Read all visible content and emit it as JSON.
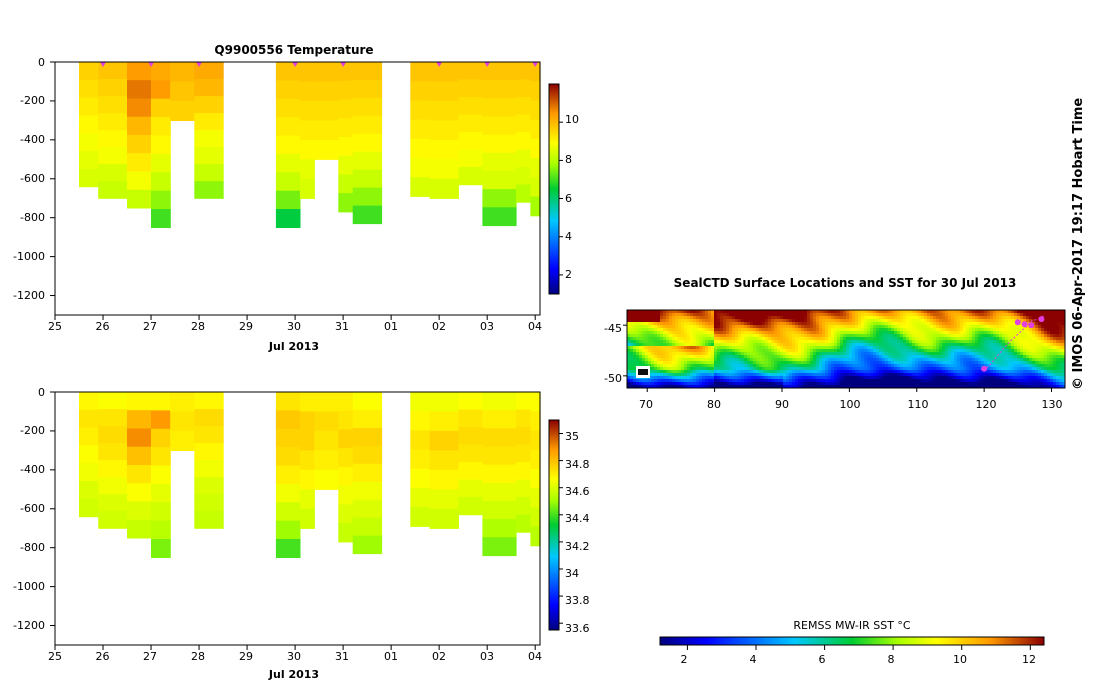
{
  "credit": "© IMOS 06-Apr-2017 19:17 Hobart Time",
  "colors": {
    "axis": "#000000",
    "marker": "#e040e0",
    "background": "#ffffff"
  },
  "section_plots": [
    {
      "id": "temperature",
      "title": "Q9900556  Temperature",
      "x_ticks": [
        "25",
        "26",
        "27",
        "28",
        "29",
        "30",
        "31",
        "01",
        "02",
        "03",
        "04"
      ],
      "x_month_label": "Jul 2013",
      "y_ticks": [
        "0",
        "-200",
        "-400",
        "-600",
        "-800",
        "-1000",
        "-1200"
      ],
      "colorbar_ticks": [
        "2",
        "4",
        "6",
        "8",
        "10"
      ]
    },
    {
      "id": "salinity",
      "title": "",
      "x_ticks": [
        "25",
        "26",
        "27",
        "28",
        "29",
        "30",
        "31",
        "01",
        "02",
        "03",
        "04"
      ],
      "x_month_label": "Jul 2013",
      "y_ticks": [
        "0",
        "-200",
        "-400",
        "-600",
        "-800",
        "-1000",
        "-1200"
      ],
      "colorbar_ticks": [
        "33.6",
        "33.8",
        "34",
        "34.2",
        "34.4",
        "34.6",
        "34.8",
        "35"
      ]
    }
  ],
  "map": {
    "title": "SealCTD Surface Locations and SST for 30 Jul 2013",
    "x_ticks": [
      "70",
      "80",
      "90",
      "100",
      "110",
      "120",
      "130"
    ],
    "y_ticks": [
      "-45",
      "-50"
    ],
    "colorbar_title": "REMSS MW-IR SST °C",
    "colorbar_ticks": [
      "2",
      "4",
      "6",
      "8",
      "10",
      "12"
    ]
  },
  "chart_data": [
    {
      "type": "heatmap",
      "title": "Q9900556  Temperature",
      "xlabel": "Jul 2013",
      "ylabel": "",
      "x_unit": "day of Jul 2013 (28 = 28 Jul, 32 = 1 Aug)",
      "xlim": [
        25,
        35.1
      ],
      "ylim": [
        -1300,
        0
      ],
      "colorbar_range": [
        1,
        12
      ],
      "profile_markers_x": [
        26,
        27,
        28,
        30,
        31,
        33,
        34,
        35
      ],
      "profiles": [
        {
          "x0": 25.5,
          "x1": 25.9,
          "bottom": -640,
          "values": [
            9.6,
            9.4,
            9.2,
            9.0,
            8.8,
            8.6,
            8.4
          ]
        },
        {
          "x0": 25.9,
          "x1": 26.5,
          "bottom": -700,
          "values": [
            9.8,
            9.6,
            9.4,
            9.2,
            9.0,
            8.8,
            8.4,
            8.2
          ]
        },
        {
          "x0": 26.5,
          "x1": 27.0,
          "bottom": -750,
          "values": [
            10.4,
            10.8,
            10.6,
            10.0,
            9.6,
            9.2,
            8.8,
            8.2
          ]
        },
        {
          "x0": 27.0,
          "x1": 27.4,
          "bottom": -850,
          "values": [
            10.2,
            10.4,
            9.6,
            9.2,
            9.0,
            8.6,
            8.2,
            7.6,
            7.0
          ]
        },
        {
          "x0": 27.4,
          "x1": 27.9,
          "bottom": -300,
          "values": [
            10.0,
            9.8,
            9.6
          ]
        },
        {
          "x0": 27.9,
          "x1": 28.5,
          "bottom": -700,
          "values": [
            10.2,
            10.0,
            9.6,
            9.2,
            8.8,
            8.6,
            8.2,
            7.6
          ]
        },
        {
          "x0": 29.6,
          "x1": 30.1,
          "bottom": -850,
          "values": [
            9.8,
            9.6,
            9.4,
            9.2,
            9.0,
            8.6,
            8.2,
            7.4,
            6.4
          ]
        },
        {
          "x0": 30.1,
          "x1": 30.4,
          "bottom": -700,
          "values": [
            9.8,
            9.6,
            9.4,
            9.2,
            9.0,
            8.6,
            8.4
          ]
        },
        {
          "x0": 30.4,
          "x1": 30.9,
          "bottom": -500,
          "values": [
            9.8,
            9.6,
            9.4,
            9.2,
            9.0
          ]
        },
        {
          "x0": 30.9,
          "x1": 31.2,
          "bottom": -770,
          "values": [
            9.8,
            9.6,
            9.4,
            9.2,
            9.0,
            8.6,
            8.2,
            7.6
          ]
        },
        {
          "x0": 31.2,
          "x1": 31.8,
          "bottom": -830,
          "values": [
            9.8,
            9.6,
            9.4,
            9.2,
            9.0,
            8.6,
            8.2,
            7.6,
            7.0
          ]
        },
        {
          "x0": 32.4,
          "x1": 32.8,
          "bottom": -690,
          "values": [
            9.8,
            9.6,
            9.4,
            9.2,
            9.0,
            8.8,
            8.4
          ]
        },
        {
          "x0": 32.8,
          "x1": 33.4,
          "bottom": -700,
          "values": [
            9.8,
            9.6,
            9.4,
            9.2,
            9.0,
            8.8,
            8.4
          ]
        },
        {
          "x0": 33.4,
          "x1": 33.9,
          "bottom": -630,
          "values": [
            9.8,
            9.6,
            9.4,
            9.2,
            9.0,
            8.8,
            8.4
          ]
        },
        {
          "x0": 33.9,
          "x1": 34.6,
          "bottom": -840,
          "values": [
            9.8,
            9.6,
            9.4,
            9.2,
            9.0,
            8.6,
            8.4,
            7.6,
            7.0
          ]
        },
        {
          "x0": 34.6,
          "x1": 34.9,
          "bottom": -720,
          "values": [
            9.8,
            9.6,
            9.4,
            9.2,
            9.0,
            8.6,
            8.4,
            8.0
          ]
        },
        {
          "x0": 34.9,
          "x1": 35.1,
          "bottom": -790,
          "values": [
            9.8,
            9.6,
            9.4,
            9.2,
            9.0,
            8.6,
            8.4,
            7.8
          ]
        }
      ]
    },
    {
      "type": "heatmap",
      "title": "",
      "xlabel": "Jul 2013",
      "ylabel": "",
      "x_unit": "day of Jul 2013 (28 = 28 Jul, 32 = 1 Aug)",
      "xlim": [
        25,
        35.1
      ],
      "ylim": [
        -1300,
        0
      ],
      "colorbar_range": [
        33.55,
        35.1
      ],
      "profiles": [
        {
          "x0": 25.5,
          "x1": 25.9,
          "bottom": -640,
          "values": [
            34.68,
            34.72,
            34.7,
            34.66,
            34.64,
            34.6,
            34.58
          ]
        },
        {
          "x0": 25.9,
          "x1": 26.5,
          "bottom": -700,
          "values": [
            34.66,
            34.72,
            34.74,
            34.72,
            34.68,
            34.64,
            34.6,
            34.58
          ]
        },
        {
          "x0": 26.5,
          "x1": 27.0,
          "bottom": -750,
          "values": [
            34.68,
            34.82,
            34.9,
            34.8,
            34.72,
            34.66,
            34.6,
            34.56
          ]
        },
        {
          "x0": 27.0,
          "x1": 27.4,
          "bottom": -850,
          "values": [
            34.68,
            34.88,
            34.76,
            34.72,
            34.66,
            34.62,
            34.58,
            34.54,
            34.46
          ]
        },
        {
          "x0": 27.4,
          "x1": 27.9,
          "bottom": -300,
          "values": [
            34.7,
            34.72,
            34.7
          ]
        },
        {
          "x0": 27.9,
          "x1": 28.5,
          "bottom": -700,
          "values": [
            34.68,
            34.74,
            34.72,
            34.68,
            34.64,
            34.6,
            34.58,
            34.56
          ]
        },
        {
          "x0": 29.6,
          "x1": 30.1,
          "bottom": -850,
          "values": [
            34.72,
            34.78,
            34.76,
            34.74,
            34.7,
            34.64,
            34.58,
            34.5,
            34.4
          ]
        },
        {
          "x0": 30.1,
          "x1": 30.4,
          "bottom": -700,
          "values": [
            34.7,
            34.76,
            34.76,
            34.72,
            34.68,
            34.62,
            34.58
          ]
        },
        {
          "x0": 30.4,
          "x1": 30.9,
          "bottom": -500,
          "values": [
            34.7,
            34.74,
            34.72,
            34.7,
            34.66
          ]
        },
        {
          "x0": 30.9,
          "x1": 31.2,
          "bottom": -770,
          "values": [
            34.7,
            34.72,
            34.76,
            34.72,
            34.68,
            34.64,
            34.6,
            34.56
          ]
        },
        {
          "x0": 31.2,
          "x1": 31.8,
          "bottom": -830,
          "values": [
            34.66,
            34.7,
            34.76,
            34.74,
            34.7,
            34.64,
            34.6,
            34.56,
            34.5
          ]
        },
        {
          "x0": 32.4,
          "x1": 32.8,
          "bottom": -690,
          "values": [
            34.64,
            34.68,
            34.72,
            34.7,
            34.66,
            34.62,
            34.58
          ]
        },
        {
          "x0": 32.8,
          "x1": 33.4,
          "bottom": -700,
          "values": [
            34.64,
            34.7,
            34.76,
            34.72,
            34.68,
            34.62,
            34.58
          ]
        },
        {
          "x0": 33.4,
          "x1": 33.9,
          "bottom": -630,
          "values": [
            34.66,
            34.72,
            34.74,
            34.72,
            34.68,
            34.62,
            34.58
          ]
        },
        {
          "x0": 33.9,
          "x1": 34.6,
          "bottom": -840,
          "values": [
            34.64,
            34.7,
            34.74,
            34.72,
            34.68,
            34.62,
            34.58,
            34.52,
            34.46
          ]
        },
        {
          "x0": 34.6,
          "x1": 34.9,
          "bottom": -720,
          "values": [
            34.66,
            34.72,
            34.74,
            34.72,
            34.68,
            34.62,
            34.58,
            34.54
          ]
        },
        {
          "x0": 34.9,
          "x1": 35.1,
          "bottom": -790,
          "values": [
            34.66,
            34.7,
            34.72,
            34.7,
            34.66,
            34.62,
            34.58,
            34.54
          ]
        }
      ]
    },
    {
      "type": "heatmap",
      "title": "SealCTD Surface Locations and SST for 30 Jul 2013",
      "xlabel": "",
      "ylabel": "",
      "xlim": [
        67,
        132
      ],
      "ylim": [
        -51.2,
        -43.5
      ],
      "colorbar_range": [
        1.2,
        12.4
      ],
      "colorbar_title": "REMSS MW-IR SST °C",
      "track": [
        [
          120,
          -49.5
        ],
        [
          121,
          -48.8
        ],
        [
          122,
          -48.0
        ],
        [
          123,
          -47.2
        ],
        [
          124,
          -46.5
        ],
        [
          125,
          -45.9
        ],
        [
          126,
          -45.3
        ],
        [
          127,
          -44.6
        ],
        [
          128,
          -44.4
        ],
        [
          129,
          -44.0
        ]
      ],
      "surface_locations": [
        [
          125,
          -44.7
        ],
        [
          126,
          -44.9
        ],
        [
          127,
          -45.0
        ],
        [
          128.5,
          -44.4
        ],
        [
          120,
          -49.3
        ]
      ]
    }
  ]
}
